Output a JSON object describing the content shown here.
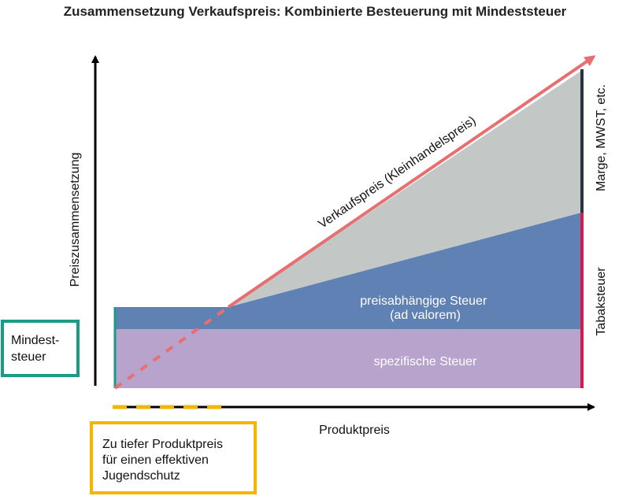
{
  "title": "Zusammensetzung Verkaufspreis: Kombinierte Besteuerung mit Mindeststeuer",
  "y_axis_label": "Preiszusammensetzung",
  "x_axis_label": "Produktpreis",
  "line_label": "Verkaufspreis (Kleinhandelspreis)",
  "regions": {
    "ad_valorem": [
      "preisabhängige Steuer",
      "(ad valorem)"
    ],
    "specific": "spezifische Steuer",
    "margin": "Marge, MWST, etc.",
    "tobacco_tax": "Tabaksteuer"
  },
  "boxes": {
    "minimum_tax": [
      "Mindest-",
      "steuer"
    ],
    "low_price": [
      "Zu tiefer Produktpreis",
      "für einen effektiven",
      "Jugendschutz"
    ]
  },
  "colors": {
    "specific_tax": "#b7a3cc",
    "ad_valorem_tax": "#5f81b3",
    "margin": "#c3c8c7",
    "sales_price_line": "#e86e70",
    "minimum_tax_accent": "#1a9a87",
    "tobacco_tax_bracket": "#d9174e",
    "margin_bracket": "#2a3142",
    "low_price_accent": "#f2b500",
    "axis": "#000000"
  }
}
